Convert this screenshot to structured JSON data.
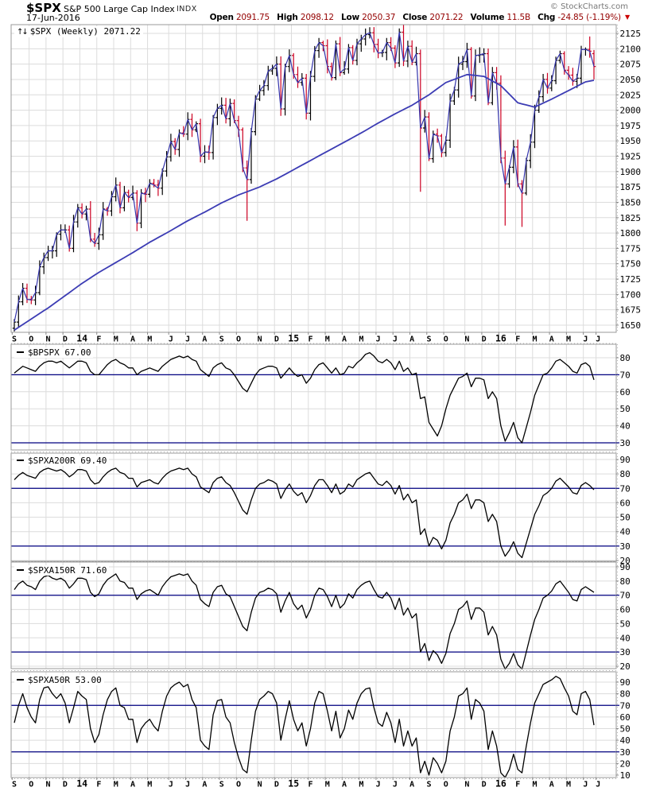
{
  "header": {
    "symbol": "$SPX",
    "name": "S&P 500 Large Cap Index",
    "exchange": "INDX",
    "date": "17-Jun-2016",
    "copyright": "© StockCharts.com",
    "quote": {
      "open_label": "Open",
      "open": "2091.75",
      "high_label": "High",
      "high": "2098.12",
      "low_label": "Low",
      "low": "2050.37",
      "close_label": "Close",
      "close": "2071.22",
      "volume_label": "Volume",
      "volume": "11.5B",
      "chg_label": "Chg",
      "chg": "-24.85 (-1.19%)"
    },
    "icons": {
      "updown": "↑↓",
      "triangle_down": "▼"
    },
    "colors": {
      "value_text": "#940000",
      "triangle": "#cc0000"
    }
  },
  "chart_data": [
    {
      "type": "ohlc",
      "title": "$SPX (Weekly)",
      "last_value": 2071.22,
      "label_text": "$SPX (Weekly) 2071.22",
      "x_range": "Sep-2013 to Jul-2016",
      "ylim": [
        1638,
        2140
      ],
      "yticks": [
        2125,
        2100,
        2075,
        2050,
        2025,
        2000,
        1975,
        1950,
        1925,
        1900,
        1875,
        1850,
        1825,
        1800,
        1775,
        1750,
        1725,
        1700,
        1675,
        1650
      ],
      "months": {
        "labels": [
          "S",
          "O",
          "N",
          "D",
          "14",
          "F",
          "M",
          "A",
          "M",
          "J",
          "J",
          "A",
          "S",
          "O",
          "N",
          "D",
          "15",
          "F",
          "M",
          "A",
          "M",
          "J",
          "J",
          "A",
          "S",
          "O",
          "N",
          "D",
          "16",
          "F",
          "M",
          "A",
          "M",
          "J",
          "J"
        ],
        "weeks": [
          4,
          4,
          4,
          4,
          4,
          4,
          4,
          4,
          5,
          4,
          4,
          4,
          4,
          5,
          4,
          4,
          4,
          4,
          4,
          4,
          4,
          4,
          4,
          4,
          4,
          5,
          4,
          4,
          4,
          4,
          4,
          4,
          4,
          3,
          0
        ]
      },
      "open_first": 1645,
      "closes": [
        1655,
        1688,
        1710,
        1692,
        1691,
        1703,
        1745,
        1760,
        1771,
        1771,
        1798,
        1805,
        1805,
        1775,
        1818,
        1841,
        1831,
        1839,
        1790,
        1783,
        1797,
        1839,
        1836,
        1859,
        1878,
        1841,
        1866,
        1858,
        1865,
        1816,
        1865,
        1863,
        1881,
        1878,
        1873,
        1901,
        1924,
        1949,
        1936,
        1963,
        1961,
        1985,
        1968,
        1978,
        1925,
        1932,
        1931,
        1988,
        2003,
        2008,
        1986,
        2011,
        1983,
        1968,
        1906,
        1887,
        1965,
        2018,
        2032,
        2040,
        2064,
        2068,
        2075,
        2002,
        2071,
        2089,
        2058,
        2045,
        2052,
        1995,
        2055,
        2097,
        2110,
        2105,
        2071,
        2053,
        2108,
        2061,
        2067,
        2102,
        2081,
        2108,
        2116,
        2123,
        2126,
        2107,
        2093,
        2094,
        2110,
        2101,
        2077,
        2127,
        2080,
        2104,
        2078,
        2092,
        1971,
        1989,
        1921,
        1961,
        1958,
        1931,
        1951,
        2015,
        2033,
        2075,
        2079,
        2099,
        2023,
        2089,
        2090,
        2092,
        2012,
        2061,
        2044,
        1922,
        1880,
        1907,
        1940,
        1880,
        1865,
        1918,
        1948,
        2000,
        2022,
        2050,
        2036,
        2048,
        2081,
        2092,
        2065,
        2057,
        2047,
        2052,
        2099,
        2099,
        2096,
        2071.22
      ],
      "overrides": {
        "55": {
          "low": 1820
        },
        "84": {
          "high": 2135
        },
        "91": {
          "high": 2133
        },
        "96": {
          "low": 1867
        },
        "116": {
          "low": 1812
        },
        "120": {
          "low": 1810
        },
        "136": {
          "high": 2120
        },
        "137": {
          "open": 2092,
          "high": 2098,
          "low": 2050
        }
      },
      "ma_monthly": [
        1642,
        1660,
        1678,
        1698,
        1718,
        1736,
        1752,
        1768,
        1785,
        1804,
        1820,
        1834,
        1849,
        1862,
        1875,
        1888,
        1903,
        1918,
        1933,
        1948,
        1963,
        1979,
        1994,
        2008,
        2025,
        2045,
        2058,
        2055,
        2040,
        2012,
        2005,
        2018,
        2032,
        2046,
        2050
      ],
      "colors": {
        "up": "#000000",
        "down": "#cc0022",
        "close_line": "#3434ac",
        "ma_line": "#3c3cb4",
        "grid": "#dcdcdc",
        "border": "#999999",
        "hline": "#000080"
      }
    },
    {
      "type": "line",
      "title": "$BPSPX",
      "last_value": 67.0,
      "label_text": "$BPSPX 67.00",
      "ylim": [
        25,
        88
      ],
      "yticks": [
        80,
        70,
        60,
        50,
        40,
        30
      ],
      "hlines": [
        70,
        30
      ],
      "values": [
        71,
        73,
        75,
        74,
        73,
        72,
        75,
        77,
        78,
        78,
        77,
        78,
        76,
        74,
        76,
        78,
        78,
        77,
        72,
        70,
        70,
        73,
        76,
        78,
        79,
        77,
        76,
        74,
        74,
        70,
        72,
        73,
        74,
        73,
        72,
        75,
        77,
        79,
        80,
        81,
        80,
        81,
        79,
        78,
        73,
        71,
        69,
        74,
        76,
        77,
        74,
        73,
        70,
        66,
        62,
        60,
        65,
        70,
        73,
        74,
        75,
        75,
        74,
        68,
        71,
        74,
        71,
        69,
        70,
        65,
        68,
        73,
        76,
        77,
        74,
        71,
        74,
        70,
        71,
        75,
        74,
        77,
        79,
        82,
        83,
        81,
        78,
        77,
        79,
        77,
        73,
        78,
        72,
        74,
        70,
        71,
        56,
        57,
        42,
        38,
        34,
        40,
        50,
        58,
        63,
        68,
        69,
        71,
        63,
        68,
        68,
        67,
        56,
        60,
        56,
        40,
        31,
        36,
        42,
        33,
        30,
        39,
        48,
        58,
        64,
        70,
        71,
        74,
        78,
        79,
        77,
        75,
        72,
        71,
        76,
        77,
        75,
        67
      ]
    },
    {
      "type": "line",
      "title": "$SPXA200R",
      "last_value": 69.4,
      "label_text": "$SPXA200R 69.40",
      "ylim": [
        19,
        94
      ],
      "yticks": [
        90,
        80,
        70,
        60,
        50,
        40,
        30,
        20
      ],
      "hlines": [
        70,
        30
      ],
      "values": [
        76,
        79,
        81,
        79,
        78,
        77,
        81,
        83,
        84,
        83,
        82,
        83,
        81,
        78,
        80,
        83,
        83,
        82,
        76,
        73,
        74,
        78,
        81,
        83,
        84,
        81,
        80,
        77,
        77,
        71,
        74,
        75,
        76,
        74,
        73,
        77,
        80,
        82,
        83,
        84,
        83,
        84,
        80,
        78,
        71,
        69,
        67,
        74,
        77,
        78,
        74,
        72,
        67,
        61,
        55,
        52,
        62,
        70,
        73,
        74,
        76,
        75,
        73,
        63,
        69,
        73,
        68,
        65,
        67,
        60,
        65,
        72,
        76,
        76,
        72,
        67,
        73,
        66,
        68,
        73,
        71,
        76,
        78,
        80,
        81,
        77,
        73,
        72,
        75,
        72,
        66,
        72,
        62,
        66,
        60,
        62,
        38,
        42,
        30,
        36,
        34,
        28,
        34,
        46,
        52,
        60,
        62,
        66,
        56,
        62,
        62,
        60,
        47,
        52,
        47,
        30,
        23,
        27,
        33,
        25,
        22,
        32,
        42,
        52,
        58,
        65,
        67,
        70,
        75,
        77,
        74,
        71,
        67,
        66,
        72,
        74,
        72,
        69
      ]
    },
    {
      "type": "line",
      "title": "$SPXA150R",
      "last_value": 71.6,
      "label_text": "$SPXA150R 71.60",
      "ylim": [
        15,
        94
      ],
      "yticks": [
        90,
        80,
        70,
        60,
        50,
        40,
        30,
        20
      ],
      "hlines": [
        70,
        30
      ],
      "values": [
        74,
        78,
        80,
        77,
        76,
        74,
        80,
        83,
        84,
        82,
        81,
        82,
        80,
        75,
        78,
        82,
        82,
        81,
        72,
        69,
        71,
        77,
        81,
        83,
        85,
        80,
        79,
        75,
        75,
        67,
        71,
        73,
        74,
        72,
        70,
        76,
        80,
        83,
        84,
        85,
        84,
        85,
        80,
        77,
        67,
        64,
        62,
        72,
        76,
        77,
        71,
        69,
        62,
        55,
        48,
        45,
        58,
        68,
        72,
        73,
        75,
        74,
        71,
        58,
        66,
        72,
        64,
        60,
        63,
        54,
        60,
        70,
        75,
        74,
        69,
        62,
        70,
        61,
        64,
        71,
        68,
        74,
        77,
        79,
        80,
        74,
        69,
        68,
        72,
        68,
        60,
        68,
        56,
        61,
        54,
        57,
        30,
        36,
        24,
        31,
        28,
        22,
        29,
        43,
        50,
        60,
        62,
        66,
        53,
        61,
        61,
        58,
        42,
        48,
        42,
        25,
        18,
        22,
        29,
        21,
        18,
        30,
        42,
        53,
        60,
        68,
        70,
        73,
        78,
        80,
        76,
        72,
        67,
        66,
        74,
        76,
        74,
        72
      ]
    },
    {
      "type": "line",
      "title": "$SPXA50R",
      "last_value": 53.0,
      "label_text": "$SPXA50R 53.00",
      "ylim": [
        5,
        98
      ],
      "yticks": [
        90,
        80,
        70,
        60,
        50,
        40,
        30,
        20,
        10
      ],
      "hlines": [
        70,
        30
      ],
      "values": [
        55,
        70,
        80,
        68,
        60,
        55,
        75,
        85,
        86,
        80,
        76,
        80,
        72,
        55,
        68,
        82,
        78,
        75,
        50,
        38,
        45,
        62,
        75,
        82,
        85,
        70,
        68,
        58,
        58,
        38,
        50,
        55,
        58,
        52,
        48,
        65,
        78,
        85,
        88,
        90,
        86,
        88,
        75,
        68,
        40,
        35,
        32,
        62,
        74,
        75,
        60,
        55,
        38,
        25,
        15,
        12,
        40,
        65,
        75,
        78,
        82,
        80,
        72,
        40,
        58,
        74,
        58,
        48,
        55,
        35,
        50,
        72,
        82,
        80,
        65,
        48,
        65,
        42,
        50,
        66,
        58,
        72,
        80,
        84,
        85,
        68,
        55,
        52,
        64,
        55,
        38,
        58,
        35,
        48,
        35,
        42,
        12,
        22,
        10,
        25,
        20,
        12,
        22,
        48,
        60,
        78,
        80,
        85,
        58,
        75,
        72,
        65,
        32,
        48,
        35,
        12,
        8,
        15,
        28,
        15,
        12,
        35,
        55,
        72,
        80,
        88,
        90,
        92,
        95,
        93,
        85,
        78,
        65,
        62,
        80,
        82,
        75,
        53
      ]
    }
  ]
}
